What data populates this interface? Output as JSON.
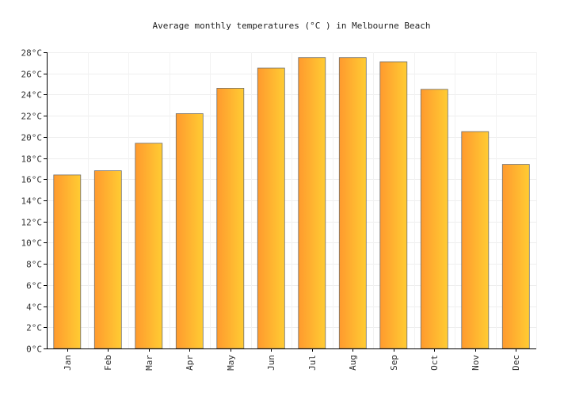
{
  "chart_data": {
    "type": "bar",
    "title": "Average monthly temperatures (°C ) in Melbourne Beach",
    "categories": [
      "Jan",
      "Feb",
      "Mar",
      "Apr",
      "May",
      "Jun",
      "Jul",
      "Aug",
      "Sep",
      "Oct",
      "Nov",
      "Dec"
    ],
    "values": [
      16.4,
      16.8,
      19.4,
      22.2,
      24.6,
      26.5,
      27.5,
      27.5,
      27.1,
      24.5,
      20.5,
      17.4
    ],
    "ylim": [
      0,
      28
    ],
    "yticks": [
      "0°C",
      "2°C",
      "4°C",
      "6°C",
      "8°C",
      "10°C",
      "12°C",
      "14°C",
      "16°C",
      "18°C",
      "20°C",
      "22°C",
      "24°C",
      "26°C",
      "28°C"
    ],
    "grid": true,
    "colors": {
      "bar_start": "#ff9a2e",
      "bar_end": "#ffcc33",
      "bar_stroke": "#6e6e6e"
    }
  }
}
